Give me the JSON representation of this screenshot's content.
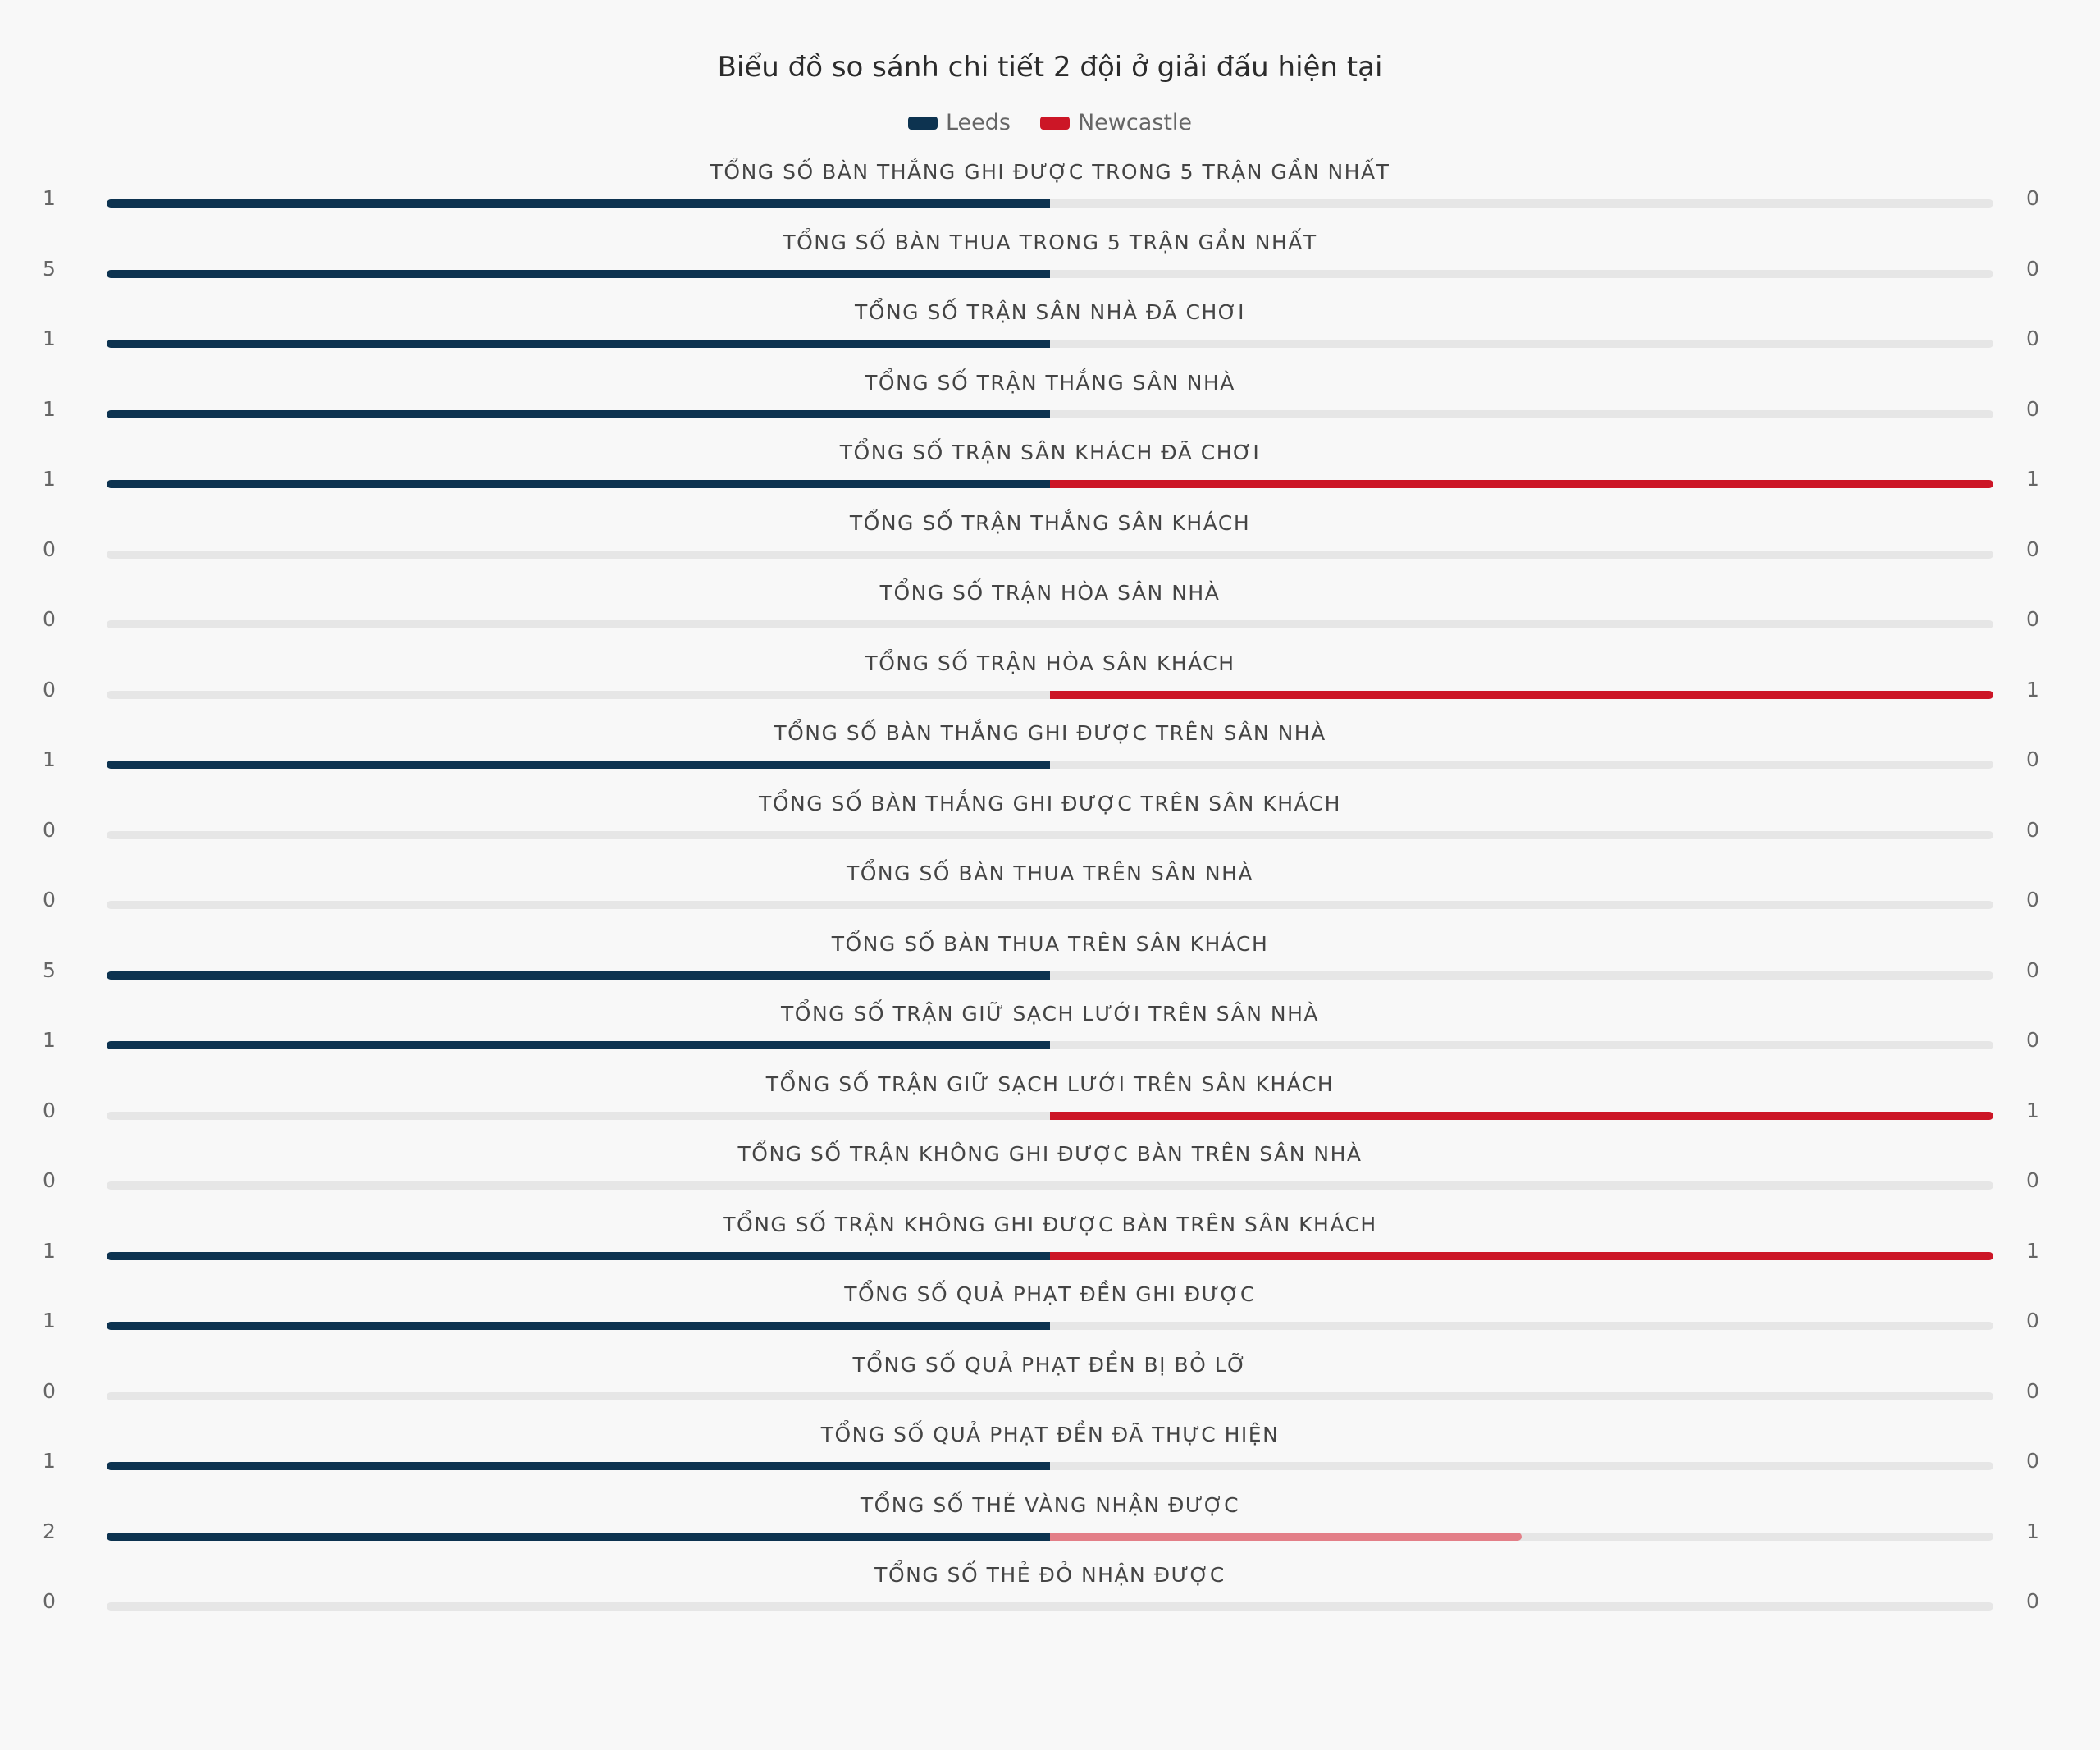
{
  "chart_data": {
    "type": "bar",
    "title": "Biểu đồ so sánh chi tiết 2 đội ở giải đấu hiện tại",
    "legend_position": "top-center",
    "series": [
      {
        "name": "Leeds",
        "color": "#0d3350",
        "values": [
          1,
          5,
          1,
          1,
          1,
          0,
          0,
          0,
          1,
          0,
          0,
          5,
          1,
          0,
          0,
          1,
          1,
          0,
          1,
          2,
          0
        ]
      },
      {
        "name": "Newcastle",
        "color": "#cc1626",
        "values": [
          0,
          0,
          0,
          0,
          1,
          0,
          0,
          1,
          0,
          0,
          0,
          0,
          0,
          1,
          0,
          1,
          0,
          0,
          0,
          1,
          0
        ]
      }
    ],
    "categories": [
      "TỔNG SỐ BÀN THẮNG GHI ĐƯỢC TRONG 5 TRẬN GẦN NHẤT",
      "TỔNG SỐ BÀN THUA TRONG 5 TRẬN GẦN NHẤT",
      "TỔNG SỐ TRẬN SÂN NHÀ ĐÃ CHƠI",
      "TỔNG SỐ TRẬN THẮNG SÂN NHÀ",
      "TỔNG SỐ TRẬN SÂN KHÁCH ĐÃ CHƠI",
      "TỔNG SỐ TRẬN THẮNG SÂN KHÁCH",
      "TỔNG SỐ TRẬN HÒA SÂN NHÀ",
      "TỔNG SỐ TRẬN HÒA SÂN KHÁCH",
      "TỔNG SỐ BÀN THẮNG GHI ĐƯỢC TRÊN SÂN NHÀ",
      "TỔNG SỐ BÀN THẮNG GHI ĐƯỢC TRÊN SÂN KHÁCH",
      "TỔNG SỐ BÀN THUA TRÊN SÂN NHÀ",
      "TỔNG SỐ BÀN THUA TRÊN SÂN KHÁCH",
      "TỔNG SỐ TRẬN GIỮ SẠCH LƯỚI TRÊN SÂN NHÀ",
      "TỔNG SỐ TRẬN GIỮ SẠCH LƯỚI TRÊN SÂN KHÁCH",
      "TỔNG SỐ TRẬN KHÔNG GHI ĐƯỢC BÀN TRÊN SÂN NHÀ",
      "TỔNG SỐ TRẬN KHÔNG GHI ĐƯỢC BÀN TRÊN SÂN KHÁCH",
      "TỔNG SỐ QUẢ PHẠT ĐỀN GHI ĐƯỢC",
      "TỔNG SỐ QUẢ PHẠT ĐỀN BỊ BỎ LỠ",
      "TỔNG SỐ QUẢ PHẠT ĐỀN ĐÃ THỰC HIỆN",
      "TỔNG SỐ THẺ VÀNG NHẬN ĐƯỢC",
      "TỔNG SỐ THẺ ĐỎ NHẬN ĐƯỢC"
    ]
  }
}
